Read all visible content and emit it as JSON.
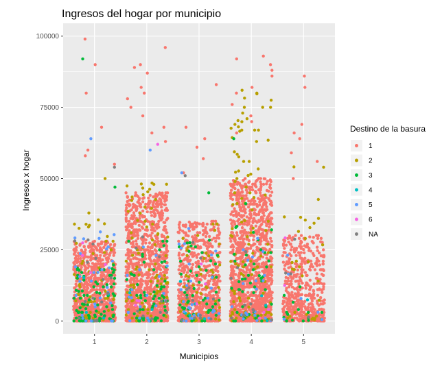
{
  "chart_data": {
    "type": "scatter",
    "title": "Ingresos del hogar por municipio",
    "xlabel": "Municipios",
    "ylabel": "Ingresos x hogar",
    "categories": [
      "1",
      "2",
      "3",
      "4",
      "5"
    ],
    "x_ticks": [
      "1",
      "2",
      "3",
      "4",
      "5"
    ],
    "y_ticks": [
      0,
      25000,
      50000,
      75000,
      100000
    ],
    "y_tick_labels": [
      "0",
      "25000",
      "50000",
      "75000",
      "100000"
    ],
    "ylim": [
      -4500,
      104500
    ],
    "xlim": [
      0.4,
      5.6
    ],
    "jitter_width": 0.4,
    "grid": true,
    "legend": {
      "title": "Destino de la basura",
      "placement": "right",
      "entries": [
        {
          "label": "1",
          "color": "#F8766D"
        },
        {
          "label": "2",
          "color": "#B79F00"
        },
        {
          "label": "3",
          "color": "#00BA38"
        },
        {
          "label": "4",
          "color": "#00BFC4"
        },
        {
          "label": "5",
          "color": "#619CFF"
        },
        {
          "label": "6",
          "color": "#F564E3"
        },
        {
          "label": "NA",
          "color": "#808080"
        }
      ]
    },
    "series": [
      {
        "name": "1",
        "color": "#F8766D",
        "counts": [
          900,
          1300,
          800,
          1500,
          550
        ],
        "dense_max": [
          28000,
          45000,
          35000,
          50000,
          30000
        ],
        "outliers": [
          [
            1,
            99000
          ],
          [
            1,
            90000
          ],
          [
            1,
            80000
          ],
          [
            1,
            68000
          ],
          [
            1,
            60000
          ],
          [
            1,
            58000
          ],
          [
            1,
            55000
          ],
          [
            2,
            96000
          ],
          [
            2,
            90000
          ],
          [
            2,
            89000
          ],
          [
            2,
            87000
          ],
          [
            2,
            82000
          ],
          [
            2,
            80000
          ],
          [
            2,
            78000
          ],
          [
            2,
            75000
          ],
          [
            2,
            72000
          ],
          [
            2,
            68000
          ],
          [
            2,
            66000
          ],
          [
            2,
            63000
          ],
          [
            3,
            83000
          ],
          [
            3,
            68000
          ],
          [
            3,
            64000
          ],
          [
            3,
            61000
          ],
          [
            3,
            57000
          ],
          [
            3,
            52000
          ],
          [
            4,
            93000
          ],
          [
            4,
            92000
          ],
          [
            4,
            90000
          ],
          [
            4,
            88000
          ],
          [
            4,
            86000
          ],
          [
            4,
            82000
          ],
          [
            4,
            80000
          ],
          [
            4,
            76000
          ],
          [
            4,
            72000
          ],
          [
            4,
            70000
          ],
          [
            4,
            66000
          ],
          [
            5,
            86000
          ],
          [
            5,
            82000
          ],
          [
            5,
            69000
          ],
          [
            5,
            66000
          ],
          [
            5,
            64000
          ],
          [
            5,
            59000
          ],
          [
            5,
            56000
          ],
          [
            5,
            50000
          ]
        ]
      },
      {
        "name": "2",
        "color": "#B79F00",
        "counts": [
          60,
          90,
          60,
          110,
          30
        ],
        "dense_max": [
          40000,
          50000,
          35000,
          80000,
          55000
        ],
        "outliers": [
          [
            4,
            81000
          ],
          [
            4,
            80000
          ],
          [
            5,
            54000
          ],
          [
            1,
            50000
          ]
        ]
      },
      {
        "name": "3",
        "color": "#00BA38",
        "counts": [
          90,
          60,
          55,
          50,
          15
        ],
        "dense_max": [
          20000,
          30000,
          30000,
          42000,
          15000
        ],
        "outliers": [
          [
            1,
            92000
          ],
          [
            1,
            47000
          ],
          [
            4,
            64000
          ],
          [
            3,
            45000
          ]
        ]
      },
      {
        "name": "4",
        "color": "#00BFC4",
        "counts": [
          5,
          3,
          5,
          3,
          1
        ],
        "dense_max": [
          20000,
          20000,
          20000,
          20000,
          15000
        ],
        "outliers": []
      },
      {
        "name": "5",
        "color": "#619CFF",
        "counts": [
          30,
          20,
          30,
          20,
          6
        ],
        "dense_max": [
          35000,
          30000,
          35000,
          30000,
          25000
        ],
        "outliers": [
          [
            1,
            64000
          ],
          [
            2,
            60000
          ],
          [
            3,
            52000
          ]
        ]
      },
      {
        "name": "6",
        "color": "#F564E3",
        "counts": [
          4,
          3,
          3,
          3,
          2
        ],
        "dense_max": [
          30000,
          30000,
          30000,
          30000,
          30000
        ],
        "outliers": [
          [
            2,
            62000
          ]
        ]
      },
      {
        "name": "NA",
        "color": "#808080",
        "counts": [
          15,
          10,
          12,
          10,
          4
        ],
        "dense_max": [
          30000,
          30000,
          30000,
          30000,
          30000
        ],
        "outliers": [
          [
            1,
            54000
          ],
          [
            3,
            51000
          ]
        ]
      }
    ]
  }
}
